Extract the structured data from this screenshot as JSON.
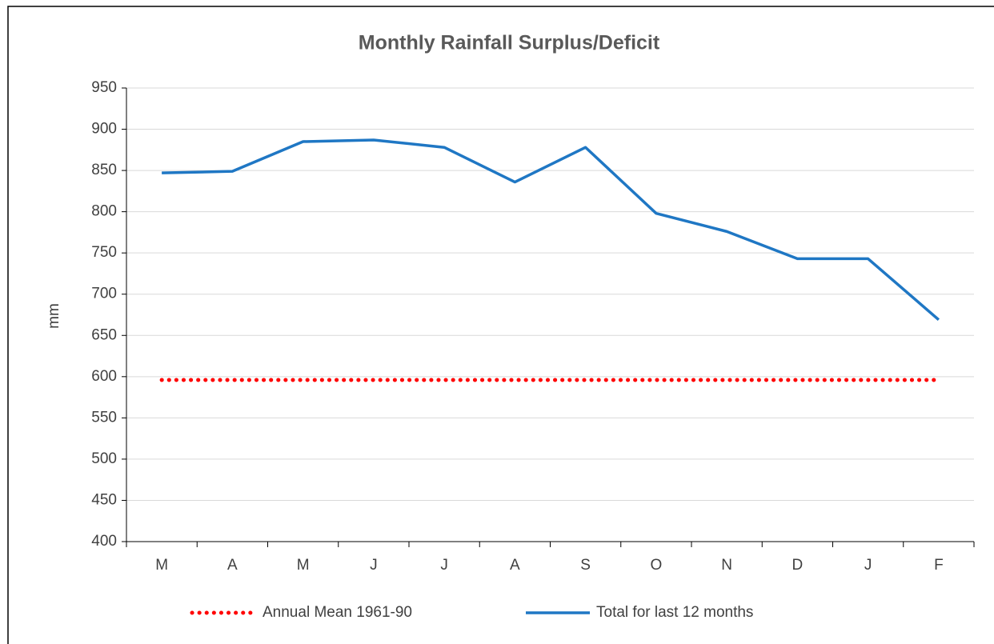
{
  "chart_data": {
    "type": "line",
    "title": "Monthly Rainfall Surplus/Deficit",
    "y_label": "mm",
    "categories": [
      "M",
      "A",
      "M",
      "J",
      "J",
      "A",
      "S",
      "O",
      "N",
      "D",
      "J",
      "F"
    ],
    "series": [
      {
        "name": "Annual Mean 1961-90",
        "color": "#ff0000",
        "style": "dotted",
        "values": [
          596,
          596,
          596,
          596,
          596,
          596,
          596,
          596,
          596,
          596,
          596,
          596
        ]
      },
      {
        "name": "Total for last 12 months",
        "color": "#1f77c4",
        "style": "solid",
        "values": [
          847,
          849,
          885,
          887,
          878,
          836,
          878,
          798,
          776,
          743,
          743,
          669
        ]
      }
    ],
    "ylim": [
      400,
      950
    ],
    "yticks": [
      400,
      450,
      500,
      550,
      600,
      650,
      700,
      750,
      800,
      850,
      900,
      950
    ],
    "grid": true,
    "legend": "bottom"
  }
}
